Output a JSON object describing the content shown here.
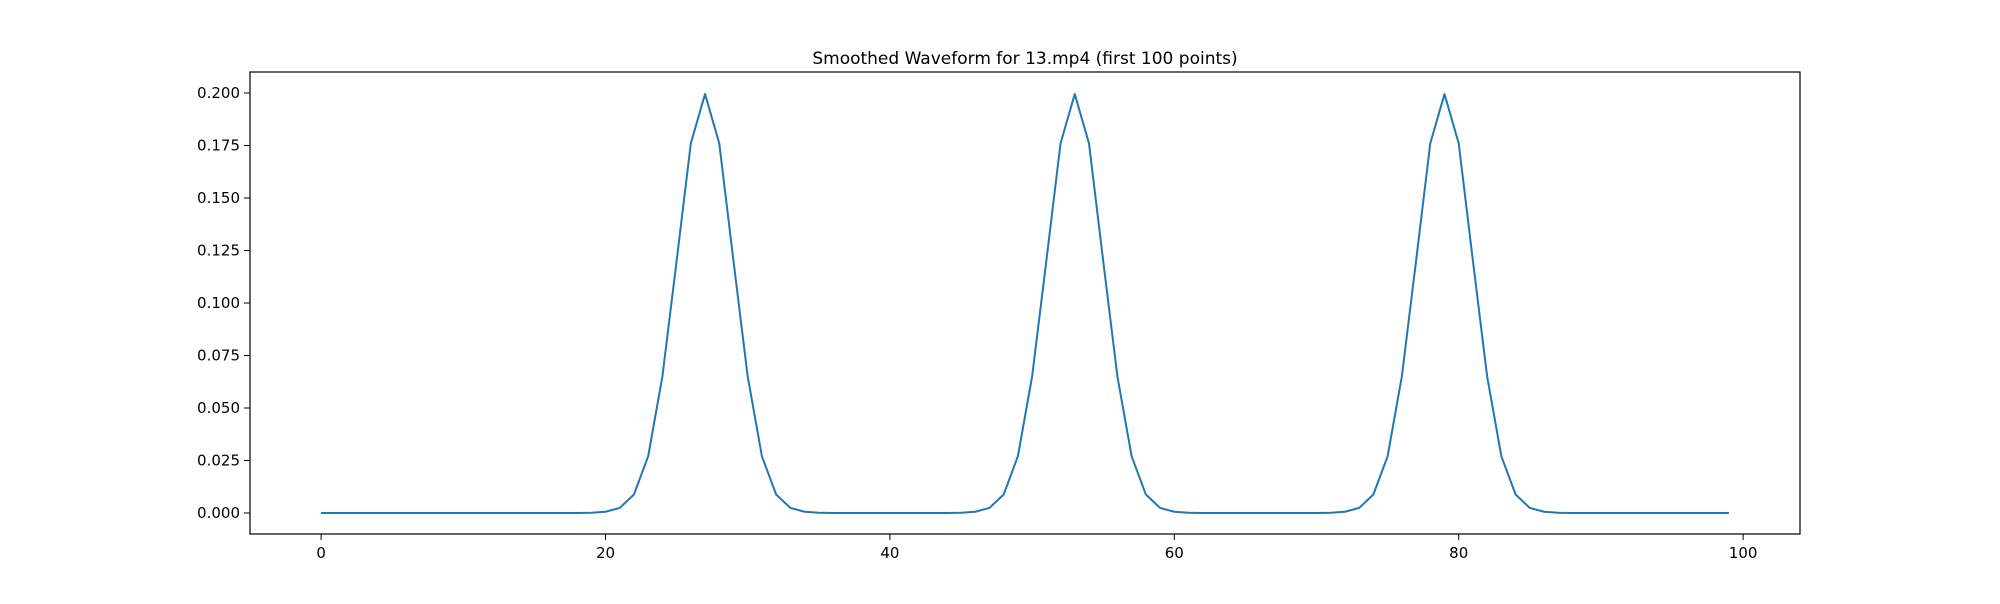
{
  "chart_data": {
    "type": "line",
    "title": "Smoothed Waveform for 13.mp4 (first 100 points)",
    "xlabel": "",
    "ylabel": "",
    "xlim": [
      -5,
      104
    ],
    "ylim": [
      -0.01,
      0.21
    ],
    "xticks": [
      0,
      20,
      40,
      60,
      80,
      100
    ],
    "xtick_labels": [
      "0",
      "20",
      "40",
      "60",
      "80",
      "100"
    ],
    "yticks": [
      0.0,
      0.025,
      0.05,
      0.075,
      0.1,
      0.125,
      0.15,
      0.175,
      0.2
    ],
    "ytick_labels": [
      "0.000",
      "0.025",
      "0.050",
      "0.075",
      "0.100",
      "0.125",
      "0.150",
      "0.175",
      "0.200"
    ],
    "grid": false,
    "legend": "none",
    "line_color": "#1f77b4",
    "x": [
      0,
      1,
      2,
      3,
      4,
      5,
      6,
      7,
      8,
      9,
      10,
      11,
      12,
      13,
      14,
      15,
      16,
      17,
      18,
      19,
      20,
      21,
      22,
      23,
      24,
      25,
      26,
      27,
      28,
      29,
      30,
      31,
      32,
      33,
      34,
      35,
      36,
      37,
      38,
      39,
      40,
      41,
      42,
      43,
      44,
      45,
      46,
      47,
      48,
      49,
      50,
      51,
      52,
      53,
      54,
      55,
      56,
      57,
      58,
      59,
      60,
      61,
      62,
      63,
      64,
      65,
      66,
      67,
      68,
      69,
      70,
      71,
      72,
      73,
      74,
      75,
      76,
      77,
      78,
      79,
      80,
      81,
      82,
      83,
      84,
      85,
      86,
      87,
      88,
      89,
      90,
      91,
      92,
      93,
      94,
      95,
      96,
      97,
      98,
      99
    ],
    "series": [
      {
        "values": [
          0,
          0,
          0,
          0,
          0,
          0,
          0,
          0,
          0,
          0,
          0,
          0,
          0,
          0,
          0,
          0,
          0,
          0,
          0,
          0.0001,
          0.0006,
          0.0024,
          0.0088,
          0.027,
          0.065,
          0.12,
          0.176,
          0.1995,
          0.176,
          0.12,
          0.065,
          0.027,
          0.0088,
          0.0024,
          0.0006,
          0.0001,
          0,
          0,
          0,
          0,
          0,
          0,
          0,
          0,
          0,
          0.0001,
          0.0006,
          0.0024,
          0.0088,
          0.027,
          0.065,
          0.12,
          0.176,
          0.1995,
          0.176,
          0.12,
          0.065,
          0.027,
          0.0088,
          0.0024,
          0.0006,
          0.0001,
          0,
          0,
          0,
          0,
          0,
          0,
          0,
          0,
          0,
          0.0001,
          0.0006,
          0.0024,
          0.0088,
          0.027,
          0.065,
          0.12,
          0.176,
          0.1995,
          0.176,
          0.12,
          0.065,
          0.027,
          0.0088,
          0.0024,
          0.0006,
          0.0001,
          0,
          0,
          0,
          0,
          0,
          0,
          0,
          0,
          0,
          0,
          0,
          0
        ]
      }
    ]
  }
}
